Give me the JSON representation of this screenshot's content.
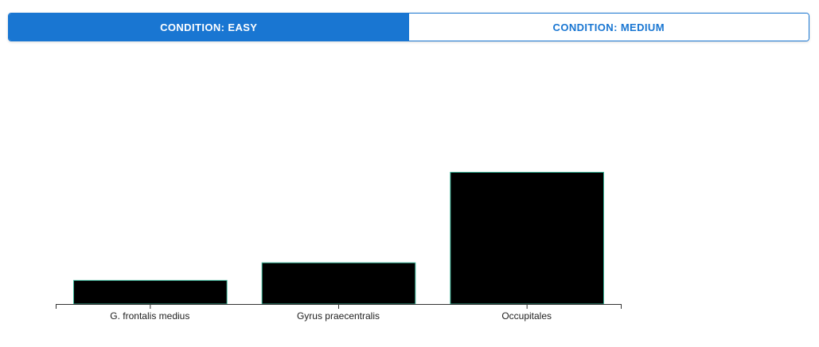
{
  "tabs": [
    {
      "label": "CONDITION: EASY",
      "active": true
    },
    {
      "label": "CONDITION: MEDIUM",
      "active": false
    }
  ],
  "colors": {
    "accent": "#1976d2",
    "bar_fill": "#000000",
    "bar_stroke": "#3cb89a",
    "axis": "#333333"
  },
  "chart_data": {
    "type": "bar",
    "categories": [
      "G. frontalis medius",
      "Gyrus praecentralis",
      "Occupitales"
    ],
    "values": [
      30,
      52,
      165
    ],
    "ylim": [
      0,
      320
    ],
    "grid": false
  }
}
